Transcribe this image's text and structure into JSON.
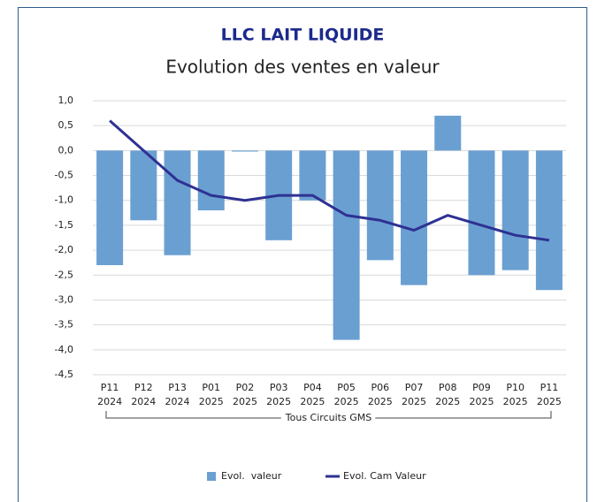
{
  "chart_data": {
    "type": "bar-line",
    "title": "LLC LAIT LIQUIDE",
    "subtitle": "Evolution des ventes en valeur",
    "categories": [
      [
        "P11",
        "2024"
      ],
      [
        "P12",
        "2024"
      ],
      [
        "P13",
        "2024"
      ],
      [
        "P01",
        "2025"
      ],
      [
        "P02",
        "2025"
      ],
      [
        "P03",
        "2025"
      ],
      [
        "P04",
        "2025"
      ],
      [
        "P05",
        "2025"
      ],
      [
        "P06",
        "2025"
      ],
      [
        "P07",
        "2025"
      ],
      [
        "P08",
        "2025"
      ],
      [
        "P09",
        "2025"
      ],
      [
        "P10",
        "2025"
      ],
      [
        "P11",
        "2025"
      ]
    ],
    "category_group": "Tous Circuits GMS",
    "series": [
      {
        "name": "Evol.  valeur",
        "type": "bar",
        "color": "#6a9fd2",
        "values": [
          -2.3,
          -1.4,
          -2.1,
          -1.2,
          -0.02,
          -1.8,
          -1.0,
          -3.8,
          -2.2,
          -2.7,
          0.7,
          -2.5,
          -2.4,
          -2.8
        ]
      },
      {
        "name": "Evol. Cam Valeur",
        "type": "line",
        "color": "#2e3192",
        "values": [
          0.6,
          0.0,
          -0.6,
          -0.9,
          -1.0,
          -0.9,
          -0.9,
          -1.3,
          -1.4,
          -1.6,
          -1.3,
          -1.5,
          -1.7,
          -1.8
        ]
      }
    ],
    "ylim": [
      -4.5,
      1.0
    ],
    "yticks": [
      {
        "value": 1.0,
        "label": "1,0"
      },
      {
        "value": 0.5,
        "label": "0,5"
      },
      {
        "value": 0.0,
        "label": "0,0"
      },
      {
        "value": -0.5,
        "label": "-0,5"
      },
      {
        "value": -1.0,
        "label": "-1,0"
      },
      {
        "value": -1.5,
        "label": "-1,5"
      },
      {
        "value": -2.0,
        "label": "-2,0"
      },
      {
        "value": -2.5,
        "label": "-2,5"
      },
      {
        "value": -3.0,
        "label": "-3,0"
      },
      {
        "value": -3.5,
        "label": "-3,5"
      },
      {
        "value": -4.0,
        "label": "-4,0"
      },
      {
        "value": -4.5,
        "label": "-4,5"
      }
    ],
    "grid": true,
    "legend": "bottom"
  }
}
